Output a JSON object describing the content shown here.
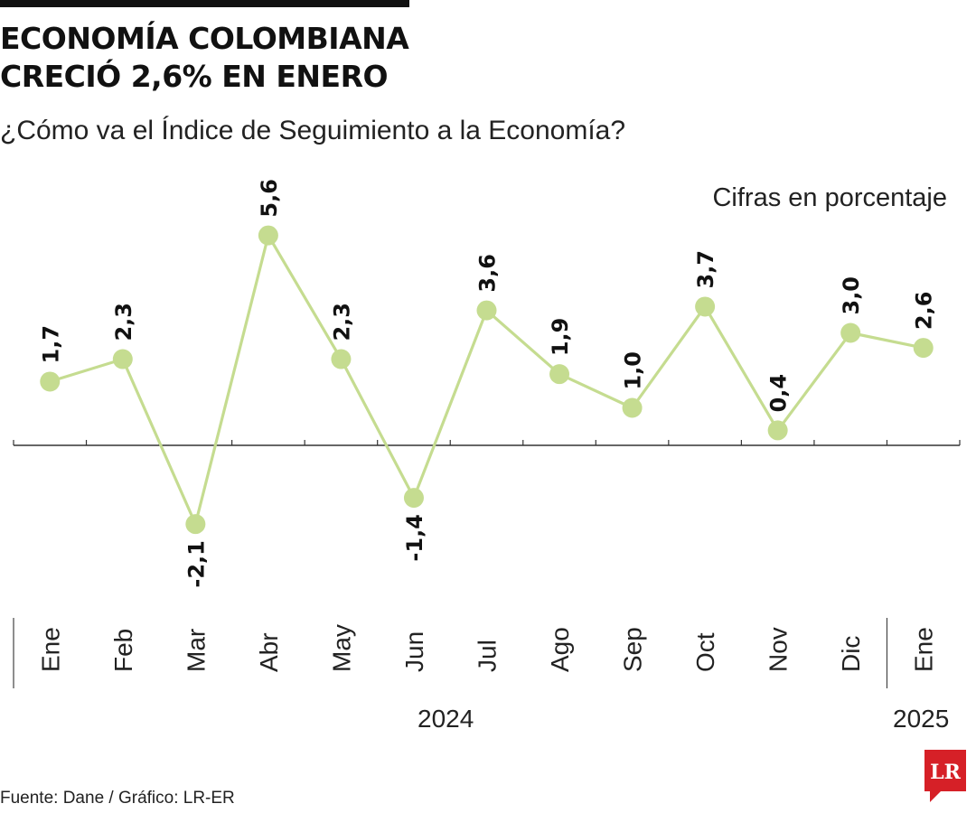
{
  "header": {
    "title_line1": "ECONOMÍA COLOMBIANA",
    "title_line2": "CRECIÓ 2,6% EN ENERO",
    "subtitle": "¿Cómo va el Índice de Seguimiento a la Economía?",
    "units_note": "Cifras en porcentaje"
  },
  "chart_data": {
    "type": "line",
    "categories": [
      "Ene",
      "Feb",
      "Mar",
      "Abr",
      "May",
      "Jun",
      "Jul",
      "Ago",
      "Sep",
      "Oct",
      "Nov",
      "Dic",
      "Ene"
    ],
    "values": [
      1.7,
      2.3,
      -2.1,
      5.6,
      2.3,
      -1.4,
      3.6,
      1.9,
      1.0,
      3.7,
      0.4,
      3.0,
      2.6
    ],
    "data_labels": [
      "1,7",
      "2,3",
      "-2,1",
      "5,6",
      "2,3",
      "-1,4",
      "3,6",
      "1,9",
      "1,0",
      "3,7",
      "0,4",
      "3,0",
      "2,6"
    ],
    "year_labels": [
      "2024",
      "2025"
    ],
    "ylim": [
      -4,
      7
    ],
    "grid": false,
    "legend": "none",
    "line_color": "#c5dc90",
    "marker_color": "#c5dc90",
    "axis_color": "#333333"
  },
  "footer": {
    "source": "Fuente: Dane / Gráfico: LR-ER",
    "logo_text": "LR",
    "logo_color": "#d62027"
  }
}
